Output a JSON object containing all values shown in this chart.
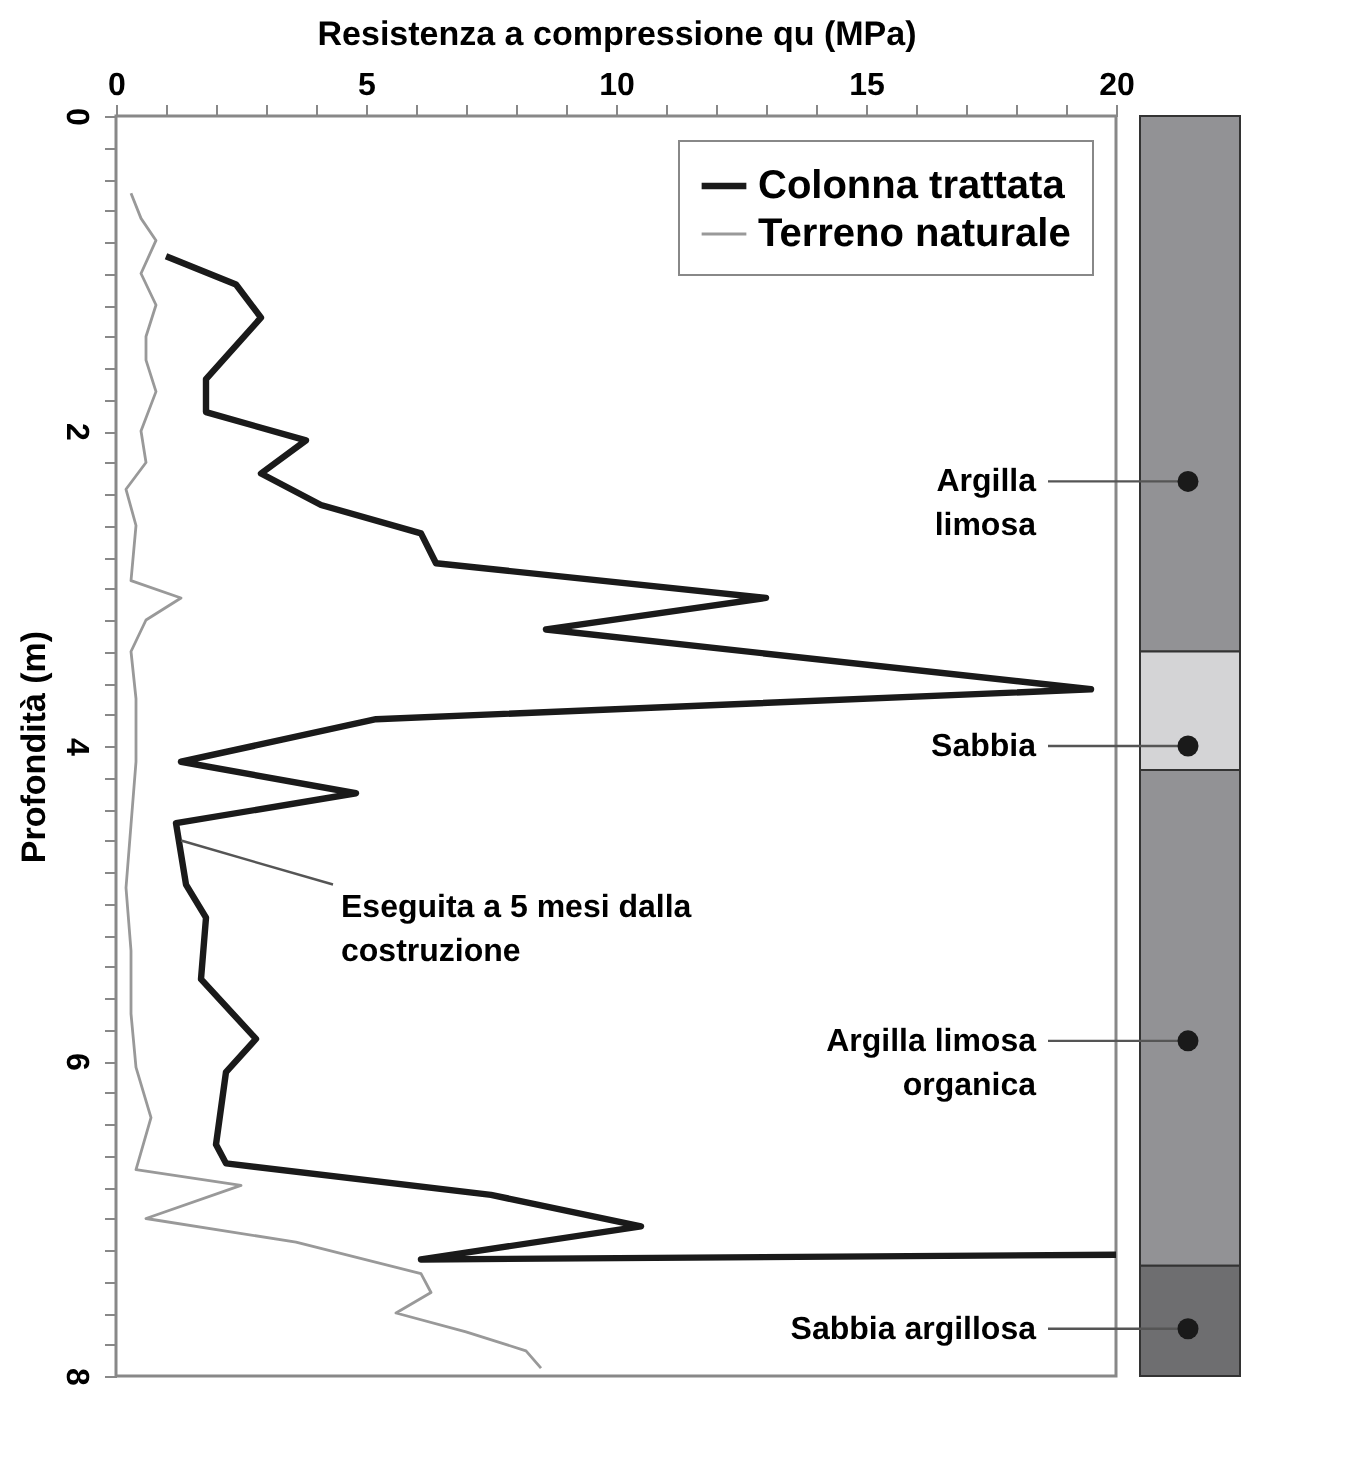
{
  "chart_data": {
    "type": "line",
    "orientation": "horizontal",
    "xlabel": "Resistenza a compressione qu (MPa)",
    "ylabel": "Profondità (m)",
    "xlim": [
      0,
      20
    ],
    "ylim": [
      8,
      0
    ],
    "xticks": [
      0,
      {
        "value": 1,
        "label": null
      },
      {
        "value": 2,
        "label": null
      },
      {
        "value": 3,
        "label": null
      },
      {
        "value": 4,
        "label": null
      },
      5,
      {
        "value": 6,
        "label": null
      },
      {
        "value": 7,
        "label": null
      },
      {
        "value": 8,
        "label": null
      },
      {
        "value": 9,
        "label": null
      },
      10,
      {
        "value": 11,
        "label": null
      },
      {
        "value": 12,
        "label": null
      },
      {
        "value": 13,
        "label": null
      },
      {
        "value": 14,
        "label": null
      },
      15,
      {
        "value": 16,
        "label": null
      },
      {
        "value": 17,
        "label": null
      },
      {
        "value": 18,
        "label": null
      },
      {
        "value": 19,
        "label": null
      },
      20
    ],
    "yticks": [
      0,
      {
        "value": 0.2,
        "label": null
      },
      {
        "value": 0.4,
        "label": null
      },
      {
        "value": 0.6,
        "label": null
      },
      {
        "value": 0.8,
        "label": null
      },
      {
        "value": 1,
        "label": null
      },
      {
        "value": 1.2,
        "label": null
      },
      {
        "value": 1.4,
        "label": null
      },
      {
        "value": 1.6,
        "label": null
      },
      {
        "value": 1.8,
        "label": null
      },
      2,
      {
        "value": 2.2,
        "label": null
      },
      {
        "value": 2.4,
        "label": null
      },
      {
        "value": 2.6,
        "label": null
      },
      {
        "value": 2.8,
        "label": null
      },
      {
        "value": 3,
        "label": null
      },
      {
        "value": 3.2,
        "label": null
      },
      {
        "value": 3.4,
        "label": null
      },
      {
        "value": 3.6,
        "label": null
      },
      {
        "value": 3.8,
        "label": null
      },
      4,
      {
        "value": 4.2,
        "label": null
      },
      {
        "value": 4.4,
        "label": null
      },
      {
        "value": 4.6,
        "label": null
      },
      {
        "value": 4.8,
        "label": null
      },
      {
        "value": 5,
        "label": null
      },
      {
        "value": 5.2,
        "label": null
      },
      {
        "value": 5.4,
        "label": null
      },
      {
        "value": 5.6,
        "label": null
      },
      {
        "value": 5.8,
        "label": null
      },
      6,
      {
        "value": 6.2,
        "label": null
      },
      {
        "value": 6.4,
        "label": null
      },
      {
        "value": 6.6,
        "label": null
      },
      {
        "value": 6.8,
        "label": null
      },
      {
        "value": 7,
        "label": null
      },
      {
        "value": 7.2,
        "label": null
      },
      {
        "value": 7.4,
        "label": null
      },
      {
        "value": 7.6,
        "label": null
      },
      {
        "value": 7.8,
        "label": null
      },
      8
    ],
    "grid": false,
    "legend": "top right",
    "marker": "none",
    "line_style": "solid",
    "series": [
      {
        "name": "Colonna trattata",
        "color": "#1a1a1a",
        "x": [
          0.89,
          1.07,
          1.28,
          1.67,
          1.88,
          2.06,
          2.27,
          2.47,
          2.65,
          2.84,
          3.06,
          3.26,
          3.64,
          3.83,
          4.1,
          4.3,
          4.49,
          4.88,
          5.09,
          5.48,
          5.86,
          6.07,
          6.53,
          6.65,
          6.85,
          7.05,
          7.26,
          7.23
        ],
        "values": [
          1.0,
          2.4,
          2.9,
          1.8,
          1.8,
          3.8,
          2.9,
          4.1,
          6.1,
          6.4,
          13.0,
          8.6,
          19.5,
          5.2,
          1.3,
          4.8,
          1.2,
          1.4,
          1.8,
          1.7,
          2.8,
          2.2,
          2.0,
          2.2,
          7.5,
          10.5,
          6.1,
          20
        ]
      },
      {
        "name": "Terreno naturale",
        "color": "#999999",
        "x": [
          0.49,
          0.65,
          0.79,
          1.0,
          1.2,
          1.4,
          1.55,
          1.75,
          2.0,
          2.2,
          2.37,
          2.6,
          2.95,
          3.06,
          3.2,
          3.4,
          3.7,
          4.1,
          4.5,
          4.9,
          5.3,
          5.7,
          6.04,
          6.36,
          6.69,
          6.79,
          7.0,
          7.15,
          7.35,
          7.47,
          7.6,
          7.72,
          7.84,
          7.95
        ],
        "values": [
          0.3,
          0.5,
          0.8,
          0.5,
          0.8,
          0.6,
          0.6,
          0.8,
          0.5,
          0.6,
          0.2,
          0.4,
          0.3,
          1.3,
          0.6,
          0.3,
          0.4,
          0.4,
          0.3,
          0.2,
          0.3,
          0.3,
          0.4,
          0.7,
          0.4,
          2.5,
          0.6,
          3.6,
          6.1,
          6.3,
          5.6,
          7.0,
          8.2,
          8.5
        ]
      }
    ],
    "annotations": [
      {
        "text": "Eseguita a 5 mesi dalla\ncostruzione",
        "x": 1.3,
        "y": 4.6
      },
      "Argilla\nlimosa",
      "Sabbia",
      "Argilla limosa\norganica",
      "Sabbia argillosa"
    ]
  }
}
